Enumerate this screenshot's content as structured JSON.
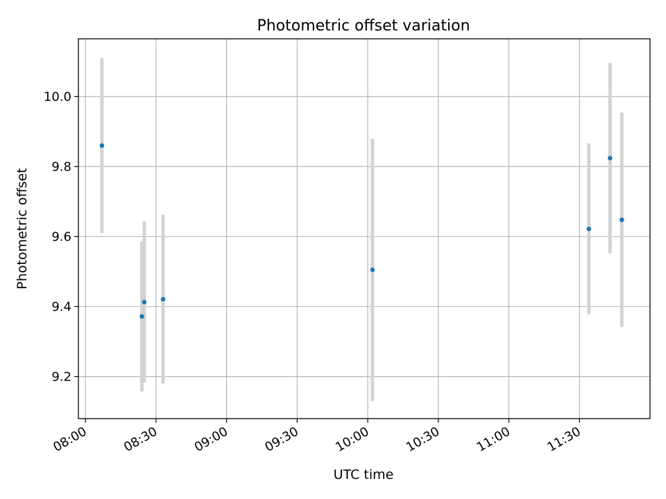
{
  "chart_data": {
    "type": "scatter",
    "title": "Photometric offset variation",
    "xlabel": "UTC time",
    "ylabel": "Photometric offset",
    "xlim": [
      "07:57",
      "12:00"
    ],
    "ylim": [
      9.08,
      10.165
    ],
    "grid": true,
    "x_ticks": [
      "08:00",
      "08:30",
      "09:00",
      "09:30",
      "10:00",
      "10:30",
      "11:00",
      "11:30"
    ],
    "y_ticks": [
      "9.2",
      "9.4",
      "9.6",
      "9.8",
      "10.0"
    ],
    "colors": {
      "marker": "#1f77b4",
      "errorbar": "#d3d3d3",
      "grid": "#b0b0b0"
    },
    "points": [
      {
        "x": "08:07",
        "y": 9.86,
        "y_low": 9.61,
        "y_high": 10.11
      },
      {
        "x": "08:24",
        "y": 9.372,
        "y_low": 9.158,
        "y_high": 9.586
      },
      {
        "x": "08:25",
        "y": 9.413,
        "y_low": 9.183,
        "y_high": 9.643
      },
      {
        "x": "08:33",
        "y": 9.421,
        "y_low": 9.18,
        "y_high": 9.662
      },
      {
        "x": "10:02",
        "y": 9.505,
        "y_low": 9.13,
        "y_high": 9.88
      },
      {
        "x": "11:34",
        "y": 9.622,
        "y_low": 9.378,
        "y_high": 9.866
      },
      {
        "x": "11:43",
        "y": 9.824,
        "y_low": 9.552,
        "y_high": 10.096
      },
      {
        "x": "11:48",
        "y": 9.648,
        "y_low": 9.342,
        "y_high": 9.954
      }
    ]
  }
}
